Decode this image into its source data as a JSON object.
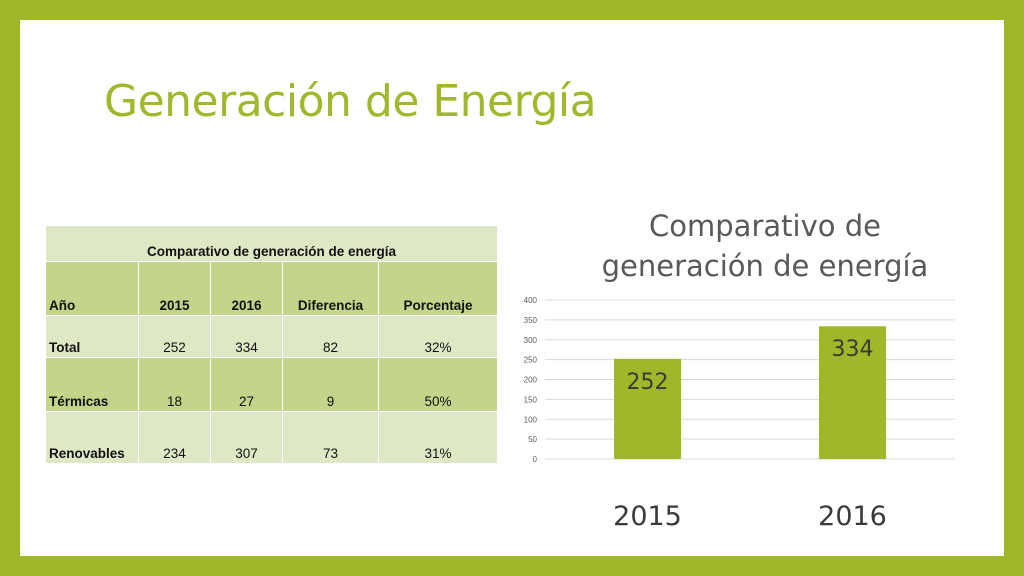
{
  "slide": {
    "title": "Generación de Energía"
  },
  "table": {
    "caption": "Comparativo de generación de energía",
    "headers": [
      "Año",
      "2015",
      "2016",
      "Diferencia",
      "Porcentaje"
    ],
    "rows": [
      [
        "Total",
        "252",
        "334",
        "82",
        "32%"
      ],
      [
        "Térmicas",
        "18",
        "27",
        "9",
        "50%"
      ],
      [
        "Renovables",
        "234",
        "307",
        "73",
        "31%"
      ]
    ]
  },
  "chart_data": {
    "type": "bar",
    "title_lines": [
      "Comparativo de",
      "generación de energía"
    ],
    "categories": [
      "2015",
      "2016"
    ],
    "values": [
      252,
      334
    ],
    "data_labels": [
      "252",
      "334"
    ],
    "ylim": [
      0,
      400
    ],
    "yticks": [
      "0",
      "50",
      "100",
      "150",
      "200",
      "250",
      "300",
      "350",
      "400"
    ],
    "ytick_values": [
      0,
      50,
      100,
      150,
      200,
      250,
      300,
      350,
      400
    ],
    "grid": true,
    "legend": "none",
    "bar_color": "#a2b629",
    "label_color": "#3a3a3a"
  }
}
